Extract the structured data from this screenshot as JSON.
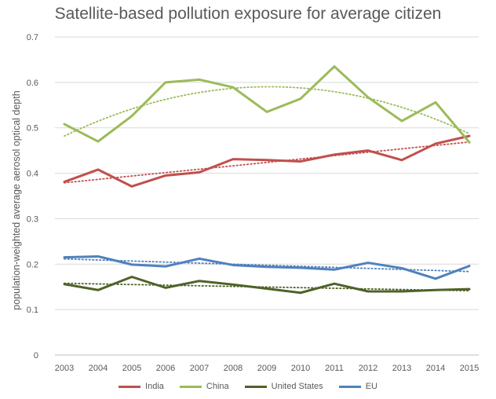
{
  "chart_data": {
    "type": "line",
    "title": "Satellite-based pollution exposure for average citizen",
    "xlabel": "",
    "ylabel": "population-weighted average aerosol optical depth",
    "categories": [
      "2003",
      "2004",
      "2005",
      "2006",
      "2007",
      "2008",
      "2009",
      "2010",
      "2011",
      "2012",
      "2013",
      "2014",
      "2015"
    ],
    "ylim": [
      0,
      0.7
    ],
    "yticks": [
      "0",
      "0.1",
      "0.2",
      "0.3",
      "0.4",
      "0.5",
      "0.6",
      "0.7"
    ],
    "grid": true,
    "legend_position": "bottom",
    "trendlines": true,
    "series": [
      {
        "name": "India",
        "color": "#c0504d",
        "values": [
          0.381,
          0.408,
          0.371,
          0.395,
          0.402,
          0.431,
          0.429,
          0.426,
          0.441,
          0.45,
          0.429,
          0.465,
          0.482
        ]
      },
      {
        "name": "China",
        "color": "#9bbb59",
        "values": [
          0.508,
          0.47,
          0.526,
          0.6,
          0.606,
          0.589,
          0.535,
          0.564,
          0.635,
          0.567,
          0.515,
          0.556,
          0.468
        ]
      },
      {
        "name": "United States",
        "color": "#4f6228",
        "values": [
          0.156,
          0.143,
          0.172,
          0.148,
          0.163,
          0.155,
          0.146,
          0.137,
          0.157,
          0.14,
          0.14,
          0.143,
          0.145
        ]
      },
      {
        "name": "EU",
        "color": "#4f81bd",
        "values": [
          0.215,
          0.217,
          0.199,
          0.195,
          0.212,
          0.198,
          0.194,
          0.192,
          0.188,
          0.203,
          0.191,
          0.168,
          0.196
        ]
      }
    ]
  }
}
